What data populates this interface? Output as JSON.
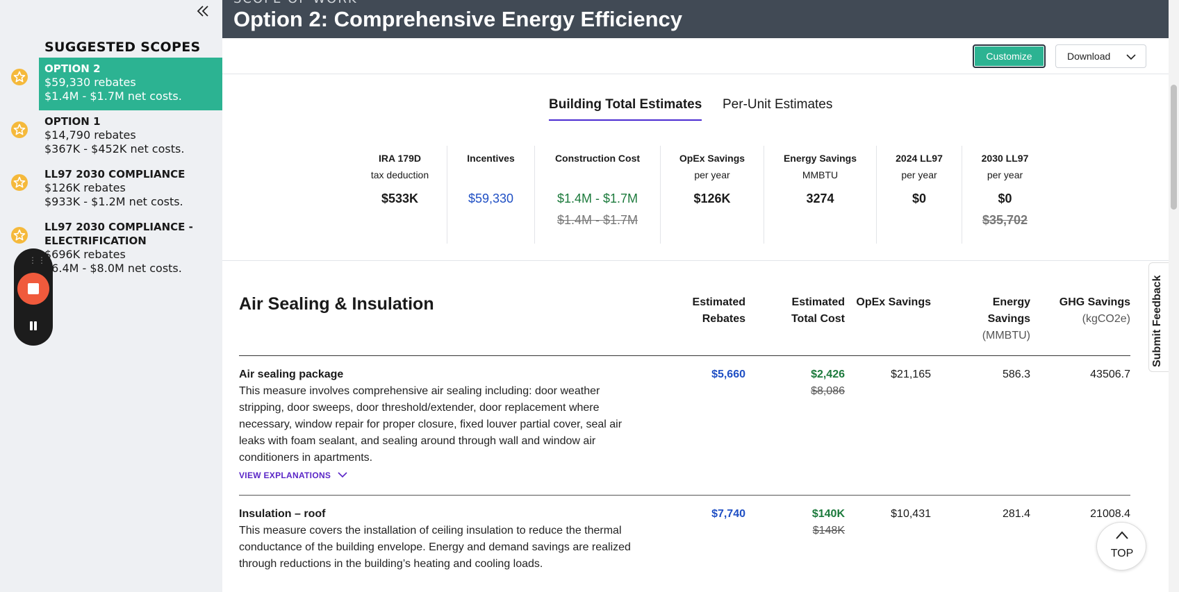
{
  "sidebar": {
    "title": "SUGGESTED SCOPES",
    "scopes": [
      {
        "name": "OPTION 2",
        "rebates": "$59,330 rebates",
        "costs": "$1.4M - $1.7M net costs.",
        "active": true
      },
      {
        "name": "OPTION 1",
        "rebates": "$14,790 rebates",
        "costs": "$367K - $452K net costs."
      },
      {
        "name": "LL97 2030 COMPLIANCE",
        "rebates": "$126K rebates",
        "costs": "$933K - $1.2M net costs."
      },
      {
        "name": "LL97 2030 COMPLIANCE - ELECTRIFICATION",
        "rebates": "$696K rebates",
        "costs": "$6.4M - $8.0M net costs."
      }
    ]
  },
  "header": {
    "kicker": "SCOPE OF WORK",
    "title": "Option 2: Comprehensive Energy Efficiency"
  },
  "toolbar": {
    "customize_label": "Customize",
    "download_label": "Download"
  },
  "tabs": [
    {
      "label": "Building Total Estimates",
      "active": true
    },
    {
      "label": "Per-Unit Estimates"
    }
  ],
  "metrics": [
    {
      "label": "IRA 179D",
      "sub": "tax deduction",
      "value": "$533K"
    },
    {
      "label": "Incentives",
      "sub": "",
      "value": "$59,330"
    },
    {
      "label": "Construction Cost",
      "sub": "",
      "value": "$1.4M - $1.7M",
      "old": "$1.4M - $1.7M"
    },
    {
      "label": "OpEx Savings",
      "sub": "per year",
      "value": "$126K"
    },
    {
      "label": "Energy Savings",
      "sub": "MMBTU",
      "value": "3274"
    },
    {
      "label": "2024 LL97",
      "sub": "per year",
      "value": "$0"
    },
    {
      "label": "2030 LL97",
      "sub": "per year",
      "value": "$0",
      "old": "$35,702"
    }
  ],
  "section": {
    "title": "Air Sealing & Insulation",
    "columns": {
      "rebates_1": "Estimated",
      "rebates_2": "Rebates",
      "cost_1": "Estimated",
      "cost_2": "Total Cost",
      "opex": "OpEx Savings",
      "energy_1": "Energy",
      "energy_2": "Savings",
      "energy_unit": "(MMBTU)",
      "ghg": "GHG Savings",
      "ghg_unit": "(kgCO2e)"
    },
    "rows": [
      {
        "name": "Air sealing package",
        "description": "This measure involves comprehensive air sealing including: door weather stripping, door sweeps, door threshold/extender, door replacement where necessary, window repair for proper closure, fixed louver partial cover, seal air leaks with foam sealant, and sealing around through wall and window air conditioners in apartments.",
        "explanations": "VIEW EXPLANATIONS",
        "rebates": "$5,660",
        "cost": "$2,426",
        "cost_old": "$8,086",
        "opex": "$21,165",
        "energy": "586.3",
        "ghg": "43506.7"
      },
      {
        "name": "Insulation – roof",
        "description": "This measure covers the installation of ceiling insulation to reduce the thermal conductance of the building envelope. Energy and demand savings are realized through reductions in the building’s heating and cooling loads.",
        "rebates": "$7,740",
        "cost": "$140K",
        "cost_old": "$148K",
        "opex": "$10,431",
        "energy": "281.4",
        "ghg": "21008.4"
      }
    ]
  },
  "top_button": "TOP",
  "feedback_label": "Submit Feedback",
  "colors": {
    "accent": "#2cb392",
    "header_bg": "#414a55",
    "link_blue": "#1f4fc4",
    "green": "#1c7a3c",
    "purple": "#5a26c7"
  }
}
